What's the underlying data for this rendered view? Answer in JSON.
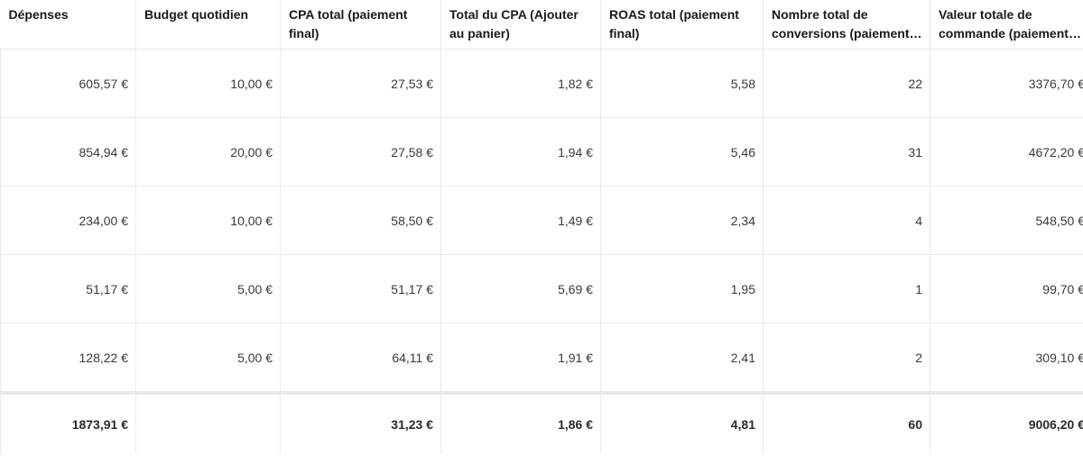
{
  "columns": [
    "Dépenses",
    "Budget quotidien",
    "CPA total (paiement final)",
    "Total du CPA (Ajouter au panier)",
    "ROAS total (paiement final)",
    "Nombre total de conversions (paiement final)",
    "Valeur totale de commande (paiement final)"
  ],
  "rows": [
    [
      "605,57 €",
      "10,00 €",
      "27,53 €",
      "1,82 €",
      "5,58",
      "22",
      "3376,70 €"
    ],
    [
      "854,94 €",
      "20,00 €",
      "27,58 €",
      "1,94 €",
      "5,46",
      "31",
      "4672,20 €"
    ],
    [
      "234,00 €",
      "10,00 €",
      "58,50 €",
      "1,49 €",
      "2,34",
      "4",
      "548,50 €"
    ],
    [
      "51,17 €",
      "5,00 €",
      "51,17 €",
      "5,69 €",
      "1,95",
      "1",
      "99,70 €"
    ],
    [
      "128,22 €",
      "5,00 €",
      "64,11 €",
      "1,91 €",
      "2,41",
      "2",
      "309,10 €"
    ]
  ],
  "totals": [
    "1873,91 €",
    "",
    "31,23 €",
    "1,86 €",
    "4,81",
    "60",
    "9006,20 €"
  ]
}
